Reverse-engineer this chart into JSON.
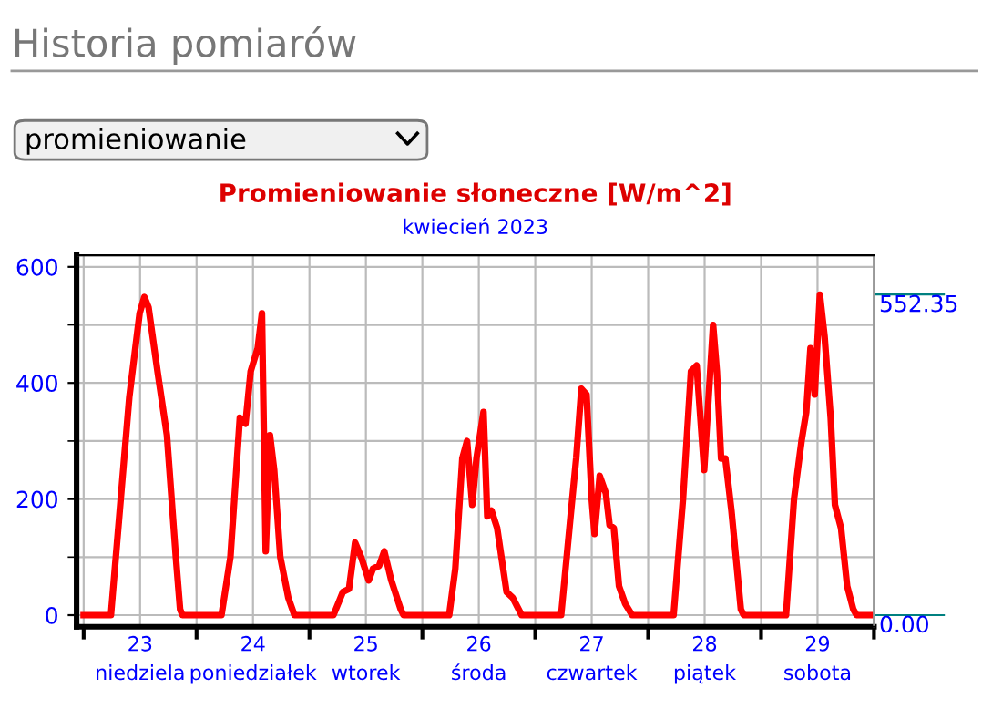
{
  "chart_data": {
    "type": "line",
    "title": "Promieniowanie słoneczne [W/m^2]",
    "subtitle": "kwiecień 2023",
    "annotations": [
      "Historia pomiarów",
      "promieniowanie"
    ],
    "series": [
      {
        "color": "#ff0000",
        "x": [
          "2023-04-23T00:00",
          "2023-04-23T05:48",
          "2023-04-23T09:42",
          "2023-04-23T11:54",
          "2023-04-23T12:54",
          "2023-04-23T13:48",
          "2023-04-23T15:42",
          "2023-04-23T17:42",
          "2023-04-23T19:36",
          "2023-04-23T20:30",
          "2023-04-23T21:00",
          "2023-04-24T05:18",
          "2023-04-24T07:12",
          "2023-04-24T09:12",
          "2023-04-24T10:24",
          "2023-04-24T11:30",
          "2023-04-24T13:00",
          "2023-04-24T13:54",
          "2023-04-24T14:42",
          "2023-04-24T15:36",
          "2023-04-24T16:30",
          "2023-04-24T17:48",
          "2023-04-24T19:30",
          "2023-04-24T20:48",
          "2023-04-25T05:06",
          "2023-04-25T07:06",
          "2023-04-25T08:24",
          "2023-04-25T09:42",
          "2023-04-25T11:00",
          "2023-04-25T12:36",
          "2023-04-25T13:30",
          "2023-04-25T14:48",
          "2023-04-25T15:54",
          "2023-04-25T17:24",
          "2023-04-25T19:24",
          "2023-04-25T20:00",
          "2023-04-26T05:42",
          "2023-04-26T07:00",
          "2023-04-26T08:30",
          "2023-04-26T09:30",
          "2023-04-26T10:36",
          "2023-04-26T11:30",
          "2023-04-26T13:00",
          "2023-04-26T13:48",
          "2023-04-26T14:42",
          "2023-04-26T15:54",
          "2023-04-26T17:54",
          "2023-04-26T19:12",
          "2023-04-26T21:06",
          "2023-04-27T05:30",
          "2023-04-27T07:30",
          "2023-04-27T08:42",
          "2023-04-27T09:48",
          "2023-04-27T10:54",
          "2023-04-27T12:00",
          "2023-04-27T12:36",
          "2023-04-27T13:42",
          "2023-04-27T15:00",
          "2023-04-27T15:48",
          "2023-04-27T16:42",
          "2023-04-27T17:48",
          "2023-04-27T19:06",
          "2023-04-27T20:36",
          "2023-04-28T05:24",
          "2023-04-28T07:24",
          "2023-04-28T09:06",
          "2023-04-28T10:18",
          "2023-04-28T11:54",
          "2023-04-28T13:48",
          "2023-04-28T14:36",
          "2023-04-28T15:30",
          "2023-04-28T16:24",
          "2023-04-28T17:42",
          "2023-04-28T19:42",
          "2023-04-28T20:18",
          "2023-04-29T05:18",
          "2023-04-29T07:00",
          "2023-04-29T08:36",
          "2023-04-29T09:36",
          "2023-04-29T10:30",
          "2023-04-29T11:24",
          "2023-04-29T12:30",
          "2023-04-29T13:30",
          "2023-04-29T14:48",
          "2023-04-29T15:42",
          "2023-04-29T17:00",
          "2023-04-29T18:18",
          "2023-04-29T19:36",
          "2023-04-29T20:18",
          "2023-04-29T23:30"
        ],
        "values": [
          0,
          0,
          375,
          520,
          548,
          530,
          420,
          310,
          100,
          10,
          0,
          0,
          100,
          340,
          330,
          420,
          460,
          520,
          110,
          310,
          250,
          100,
          30,
          0,
          0,
          40,
          45,
          125,
          100,
          60,
          80,
          85,
          110,
          60,
          10,
          0,
          0,
          80,
          270,
          300,
          190,
          270,
          350,
          170,
          180,
          150,
          40,
          30,
          0,
          0,
          170,
          270,
          390,
          380,
          200,
          140,
          240,
          210,
          155,
          150,
          50,
          20,
          0,
          0,
          200,
          420,
          430,
          250,
          500,
          420,
          270,
          270,
          180,
          10,
          0,
          0,
          200,
          300,
          350,
          460,
          380,
          552,
          480,
          340,
          190,
          150,
          50,
          10,
          0,
          0
        ]
      }
    ],
    "xlim": [
      "2023-04-22T22:30",
      "2023-04-30T00:00"
    ],
    "xticks": [
      {
        "value": "2023-04-23T00:00",
        "label": null
      },
      {
        "value": "2023-04-23T12:00",
        "label": "23\nniedziela"
      },
      {
        "value": "2023-04-24T00:00",
        "label": null
      },
      {
        "value": "2023-04-24T12:00",
        "label": "24\nponiedziałek"
      },
      {
        "value": "2023-04-25T00:00",
        "label": null
      },
      {
        "value": "2023-04-25T12:00",
        "label": "25\nwtorek"
      },
      {
        "value": "2023-04-26T00:00",
        "label": null
      },
      {
        "value": "2023-04-26T12:00",
        "label": "26\nśroda"
      },
      {
        "value": "2023-04-27T00:00",
        "label": null
      },
      {
        "value": "2023-04-27T12:00",
        "label": "27\nczwartek"
      },
      {
        "value": "2023-04-28T00:00",
        "label": null
      },
      {
        "value": "2023-04-28T12:00",
        "label": "28\npiątek"
      },
      {
        "value": "2023-04-29T00:00",
        "label": null
      },
      {
        "value": "2023-04-29T12:00",
        "label": "29\nsobota"
      },
      {
        "value": "2023-04-30T00:00",
        "label": null
      }
    ],
    "ylim": [
      -20,
      620
    ],
    "yticks": [
      0,
      {
        "value": 100,
        "label": null
      },
      200,
      {
        "value": 300,
        "label": null
      },
      400,
      {
        "value": 500,
        "label": null
      },
      600
    ],
    "y2lim": [
      -20,
      620
    ],
    "y2ticks": [
      {
        "value": 552.35,
        "label": "552.35"
      },
      {
        "value": 0,
        "label": "0.00"
      }
    ],
    "grid": true,
    "marker": "none",
    "line_style": "solid",
    "legend": false
  }
}
